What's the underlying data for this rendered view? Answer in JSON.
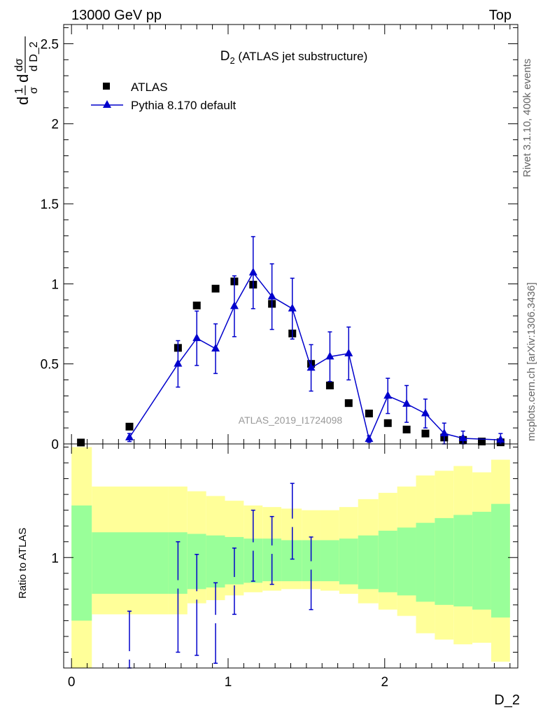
{
  "header": {
    "energy_label": "13000 GeV pp",
    "process_label": "Top"
  },
  "side_labels": {
    "rivet": "Rivet 3.1.10,  400k events",
    "mcplots": "mcplots.cern.ch [arXiv:1306.3436]"
  },
  "colors": {
    "mc": "#0000cc",
    "data": "#000000",
    "band_inner": "#99ff99",
    "band_outer": "#ffff99",
    "watermark": "#999999"
  },
  "chart_data": [
    {
      "type": "scatter",
      "title": "D",
      "title_subscript": "2",
      "title_suffix": " (ATLAS jet substructure)",
      "ylabel_parts": [
        "d",
        "1",
        "σ",
        "d",
        "dσ",
        "d D_2"
      ],
      "xlim": [
        -0.05,
        2.85
      ],
      "ylim": [
        0,
        2.62
      ],
      "yticks": [
        0,
        0.5,
        1,
        1.5,
        2,
        2.5
      ],
      "ytick_labels": [
        "0",
        "0.5",
        "1",
        "1.5",
        "2",
        "2.5"
      ],
      "legend_position": "top-left",
      "watermark": "ATLAS_2019_I1724098",
      "series": [
        {
          "name": "ATLAS",
          "marker": "square",
          "x": [
            0.06,
            0.37,
            0.68,
            0.8,
            0.92,
            1.04,
            1.16,
            1.28,
            1.41,
            1.53,
            1.65,
            1.77,
            1.9,
            2.02,
            2.14,
            2.26,
            2.38,
            2.5,
            2.62,
            2.74
          ],
          "y": [
            0.003,
            0.108,
            0.6,
            0.865,
            0.97,
            1.015,
            0.995,
            0.875,
            0.69,
            0.5,
            0.365,
            0.255,
            0.19,
            0.13,
            0.09,
            0.065,
            0.04,
            0.025,
            0.015,
            0.01
          ]
        },
        {
          "name": "Pythia 8.170 default",
          "marker": "triangle",
          "x": [
            0.37,
            0.68,
            0.8,
            0.92,
            1.04,
            1.16,
            1.28,
            1.41,
            1.53,
            1.65,
            1.77,
            1.9,
            2.02,
            2.14,
            2.26,
            2.38,
            2.5,
            2.74
          ],
          "y": [
            0.04,
            0.5,
            0.66,
            0.595,
            0.86,
            1.07,
            0.92,
            0.845,
            0.475,
            0.545,
            0.565,
            0.03,
            0.3,
            0.25,
            0.19,
            0.065,
            0.035,
            0.025
          ],
          "yerr": [
            0.025,
            0.145,
            0.17,
            0.155,
            0.19,
            0.225,
            0.205,
            0.19,
            0.145,
            0.155,
            0.165,
            0.02,
            0.11,
            0.115,
            0.09,
            0.065,
            0.045,
            0.04
          ]
        }
      ]
    },
    {
      "type": "scatter",
      "ylabel": "Ratio to ATLAS",
      "xlabel": "D_2",
      "xlim": [
        -0.05,
        2.85
      ],
      "ylim": [
        0.3,
        1.72
      ],
      "yticks": [
        1
      ],
      "ytick_labels": [
        "1"
      ],
      "xticks": [
        0,
        1,
        2
      ],
      "xtick_labels": [
        "0",
        "1",
        "2"
      ],
      "bands": {
        "edges": [
          0.0,
          0.13,
          0.62,
          0.74,
          0.86,
          0.98,
          1.1,
          1.22,
          1.34,
          1.47,
          1.59,
          1.71,
          1.83,
          1.96,
          2.08,
          2.2,
          2.32,
          2.44,
          2.56,
          2.68,
          2.8
        ],
        "inner_low": [
          0.6,
          0.77,
          0.77,
          0.8,
          0.81,
          0.83,
          0.84,
          0.85,
          0.85,
          0.85,
          0.85,
          0.83,
          0.8,
          0.78,
          0.76,
          0.72,
          0.7,
          0.69,
          0.67,
          0.62
        ],
        "inner_high": [
          1.33,
          1.16,
          1.16,
          1.15,
          1.14,
          1.13,
          1.12,
          1.12,
          1.11,
          1.11,
          1.11,
          1.12,
          1.14,
          1.17,
          1.19,
          1.22,
          1.25,
          1.27,
          1.29,
          1.34
        ],
        "outer_low": [
          0.3,
          0.64,
          0.64,
          0.71,
          0.73,
          0.76,
          0.78,
          0.79,
          0.8,
          0.8,
          0.79,
          0.77,
          0.71,
          0.67,
          0.63,
          0.52,
          0.48,
          0.45,
          0.46,
          0.34
        ],
        "outer_high": [
          1.7,
          1.45,
          1.45,
          1.42,
          1.39,
          1.36,
          1.33,
          1.32,
          1.31,
          1.3,
          1.3,
          1.32,
          1.37,
          1.41,
          1.45,
          1.52,
          1.55,
          1.58,
          1.54,
          1.62
        ]
      },
      "series": [
        {
          "name": "Pythia 8.170 default",
          "x": [
            0.37,
            0.68,
            0.8,
            0.92,
            1.04,
            1.16,
            1.28,
            1.41,
            1.53
          ],
          "y": [
            0.38,
            0.83,
            0.76,
            0.61,
            0.85,
            1.07,
            1.05,
            1.22,
            0.95
          ],
          "err_low": [
            0.38,
            0.43,
            0.38,
            0.28,
            0.21,
            0.22,
            0.22,
            0.23,
            0.28
          ],
          "err_high": [
            0.28,
            0.27,
            0.26,
            0.23,
            0.21,
            0.23,
            0.21,
            0.25,
            0.18
          ]
        }
      ]
    }
  ]
}
